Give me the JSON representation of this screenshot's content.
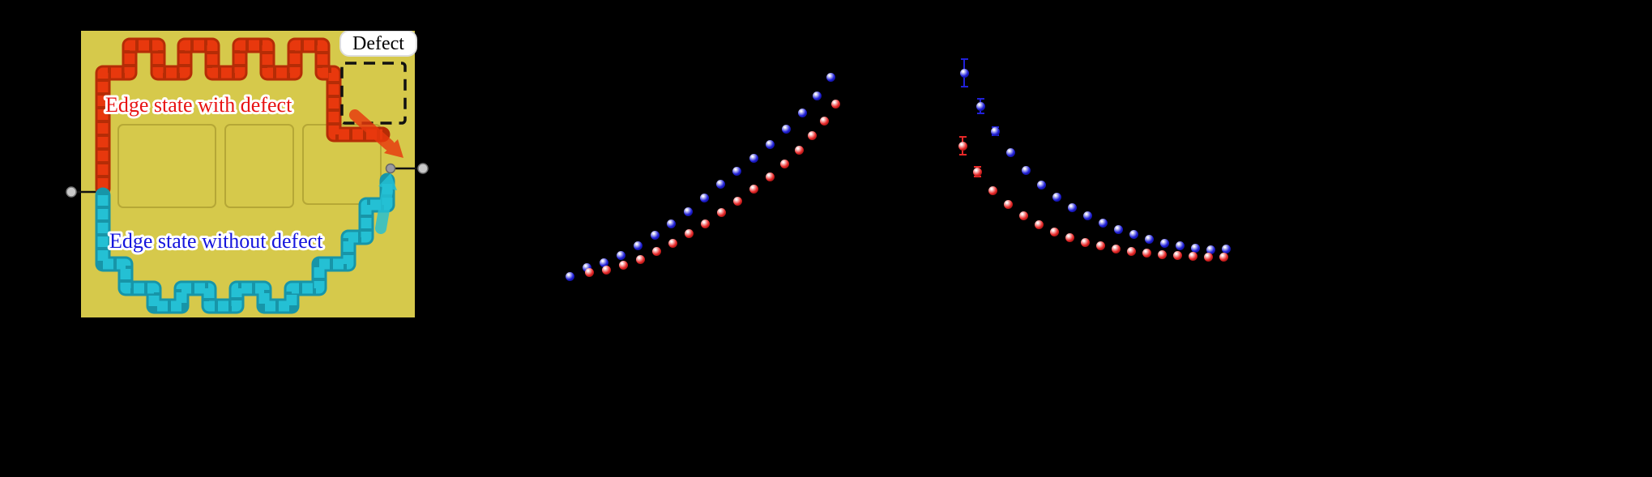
{
  "page": {
    "background": "#000000"
  },
  "schematic": {
    "labels": {
      "defect": "Defect",
      "edge_with": "Edge state with defect",
      "edge_without": "Edge state without defect"
    },
    "colors": {
      "panel": "#d6c94b",
      "with_defect": "#e8380d",
      "without_defect": "#24c0d4",
      "lead": "#c9c9c9",
      "defect_box": "#111111",
      "edge_with_text": "#e81212",
      "edge_without_text": "#1515dd"
    }
  },
  "chart_data": [
    {
      "type": "scatter",
      "panel": "b",
      "title": "",
      "axes_visible": false,
      "note_units": "normalized panel coordinates (axes not legible in image)",
      "series": [
        {
          "name": "without defect",
          "key": "blue",
          "color": "#2020d8",
          "dark": "#000050",
          "points": [
            [
              63,
              291
            ],
            [
              84,
              280
            ],
            [
              105,
              274
            ],
            [
              126,
              265
            ],
            [
              147,
              253
            ],
            [
              168,
              240
            ],
            [
              188,
              226
            ],
            [
              209,
              211
            ],
            [
              229,
              194
            ],
            [
              249,
              177
            ],
            [
              269,
              161
            ],
            [
              290,
              145
            ],
            [
              310,
              128
            ],
            [
              330,
              109
            ],
            [
              350,
              89
            ],
            [
              368,
              68
            ],
            [
              385,
              45
            ]
          ]
        },
        {
          "name": "with defect",
          "key": "red",
          "color": "#e82828",
          "dark": "#500000",
          "points": [
            [
              87,
              286
            ],
            [
              108,
              283
            ],
            [
              129,
              277
            ],
            [
              150,
              270
            ],
            [
              170,
              260
            ],
            [
              190,
              250
            ],
            [
              210,
              238
            ],
            [
              230,
              226
            ],
            [
              250,
              212
            ],
            [
              270,
              198
            ],
            [
              290,
              183
            ],
            [
              310,
              168
            ],
            [
              328,
              152
            ],
            [
              346,
              135
            ],
            [
              362,
              117
            ],
            [
              377,
              99
            ],
            [
              391,
              78
            ]
          ]
        }
      ]
    },
    {
      "type": "scatter",
      "panel": "c",
      "title": "",
      "axes_visible": false,
      "note_units": "normalized panel coordinates (axes not legible in image); third value = error bar half-length",
      "series": [
        {
          "name": "without defect",
          "key": "blue",
          "color": "#2020d8",
          "dark": "#000050",
          "points": [
            [
              40,
              40,
              18
            ],
            [
              60,
              81,
              10
            ],
            [
              78,
              112,
              6
            ],
            [
              97,
              138
            ],
            [
              116,
              160
            ],
            [
              135,
              178
            ],
            [
              154,
              193
            ],
            [
              173,
              206
            ],
            [
              192,
              216
            ],
            [
              211,
              225
            ],
            [
              230,
              233
            ],
            [
              249,
              239
            ],
            [
              268,
              245
            ],
            [
              287,
              250
            ],
            [
              306,
              253
            ],
            [
              325,
              256
            ],
            [
              344,
              258
            ],
            [
              363,
              257
            ]
          ]
        },
        {
          "name": "with defect",
          "key": "red",
          "color": "#e82828",
          "dark": "#500000",
          "points": [
            [
              38,
              130,
              12
            ],
            [
              56,
              162,
              7
            ],
            [
              75,
              185
            ],
            [
              94,
              202
            ],
            [
              113,
              216
            ],
            [
              132,
              227
            ],
            [
              151,
              236
            ],
            [
              170,
              243
            ],
            [
              189,
              249
            ],
            [
              208,
              253
            ],
            [
              227,
              257
            ],
            [
              246,
              260
            ],
            [
              265,
              262
            ],
            [
              284,
              264
            ],
            [
              303,
              265
            ],
            [
              322,
              266
            ],
            [
              341,
              267
            ],
            [
              360,
              267
            ]
          ]
        }
      ]
    }
  ]
}
